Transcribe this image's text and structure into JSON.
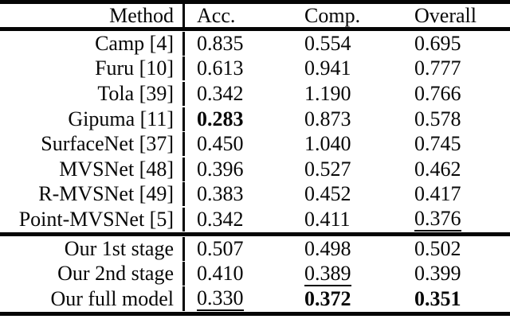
{
  "table": {
    "columns": [
      "Method",
      "Acc.",
      "Comp.",
      "Overall"
    ],
    "groups": [
      {
        "rows": [
          {
            "method": "Camp [4]",
            "values": [
              {
                "text": "0.835"
              },
              {
                "text": "0.554"
              },
              {
                "text": "0.695"
              }
            ]
          },
          {
            "method": "Furu [10]",
            "values": [
              {
                "text": "0.613"
              },
              {
                "text": "0.941"
              },
              {
                "text": "0.777"
              }
            ]
          },
          {
            "method": "Tola [39]",
            "values": [
              {
                "text": "0.342"
              },
              {
                "text": "1.190"
              },
              {
                "text": "0.766"
              }
            ]
          },
          {
            "method": "Gipuma [11]",
            "values": [
              {
                "text": "0.283",
                "bold": true
              },
              {
                "text": "0.873"
              },
              {
                "text": "0.578"
              }
            ]
          },
          {
            "method": "SurfaceNet [37]",
            "values": [
              {
                "text": "0.450"
              },
              {
                "text": "1.040"
              },
              {
                "text": "0.745"
              }
            ]
          },
          {
            "method": "MVSNet [48]",
            "values": [
              {
                "text": "0.396"
              },
              {
                "text": "0.527"
              },
              {
                "text": "0.462"
              }
            ]
          },
          {
            "method": "R-MVSNet [49]",
            "values": [
              {
                "text": "0.383"
              },
              {
                "text": "0.452"
              },
              {
                "text": "0.417"
              }
            ]
          },
          {
            "method": "Point-MVSNet [5]",
            "values": [
              {
                "text": "0.342"
              },
              {
                "text": "0.411"
              },
              {
                "text": "0.376",
                "underline": true
              }
            ]
          }
        ]
      },
      {
        "rows": [
          {
            "method": "Our 1st stage",
            "values": [
              {
                "text": "0.507"
              },
              {
                "text": "0.498"
              },
              {
                "text": "0.502"
              }
            ]
          },
          {
            "method": "Our 2nd stage",
            "values": [
              {
                "text": "0.410"
              },
              {
                "text": "0.389",
                "underline": true
              },
              {
                "text": "0.399"
              }
            ]
          },
          {
            "method": "Our full model",
            "values": [
              {
                "text": "0.330",
                "underline": true
              },
              {
                "text": "0.372",
                "bold": true
              },
              {
                "text": "0.351",
                "bold": true
              }
            ]
          }
        ]
      }
    ]
  },
  "chart_data": {
    "type": "table",
    "columns": [
      "Method",
      "Acc.",
      "Comp.",
      "Overall"
    ],
    "rows": [
      [
        "Camp [4]",
        0.835,
        0.554,
        0.695
      ],
      [
        "Furu [10]",
        0.613,
        0.941,
        0.777
      ],
      [
        "Tola [39]",
        0.342,
        1.19,
        0.766
      ],
      [
        "Gipuma [11]",
        0.283,
        0.873,
        0.578
      ],
      [
        "SurfaceNet [37]",
        0.45,
        1.04,
        0.745
      ],
      [
        "MVSNet [48]",
        0.396,
        0.527,
        0.462
      ],
      [
        "R-MVSNet [49]",
        0.383,
        0.452,
        0.417
      ],
      [
        "Point-MVSNet [5]",
        0.342,
        0.411,
        0.376
      ],
      [
        "Our 1st stage",
        0.507,
        0.498,
        0.502
      ],
      [
        "Our 2nd stage",
        0.41,
        0.389,
        0.399
      ],
      [
        "Our full model",
        0.33,
        0.372,
        0.351
      ]
    ],
    "emphasis": {
      "bold_cells": [
        [
          "Gipuma [11]",
          "Acc."
        ],
        [
          "Our full model",
          "Comp."
        ],
        [
          "Our full model",
          "Overall"
        ]
      ],
      "underline_cells": [
        [
          "Point-MVSNet [5]",
          "Overall"
        ],
        [
          "Our 2nd stage",
          "Comp."
        ],
        [
          "Our full model",
          "Acc."
        ]
      ]
    }
  },
  "colors": {
    "text": "#070707",
    "rule": "#050505",
    "background": "#ffffff"
  }
}
